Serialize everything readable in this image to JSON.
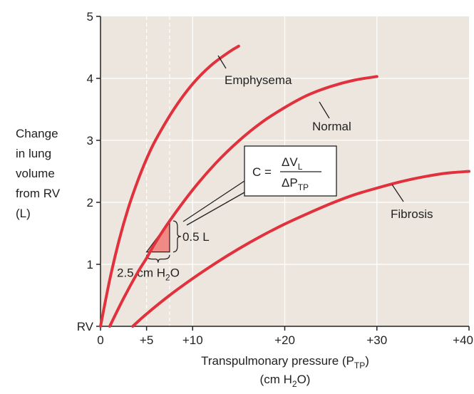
{
  "colors": {
    "plot_bg": "#ede6df",
    "curve": "#e0313d",
    "triangle_fill": "#f08a84",
    "grid": "#ffffff",
    "axis": "#222222",
    "box_fill": "#ffffff"
  },
  "chart_data": {
    "type": "line",
    "xlabel": {
      "line1": "Transpulmonary pressure (P",
      "line1_sub": "TP",
      "line1_end": ")",
      "line2": "(cm H",
      "line2_sub": "2",
      "line2_end": "O)"
    },
    "ylabel": [
      "Change",
      "in lung",
      "volume",
      "from RV",
      "(L)"
    ],
    "xlim": [
      0,
      40
    ],
    "ylim": [
      0,
      5
    ],
    "x_ticks": [
      {
        "value": 0,
        "label": "0"
      },
      {
        "value": 5,
        "label": "+5"
      },
      {
        "value": 10,
        "label": "+10"
      },
      {
        "value": 20,
        "label": "+20"
      },
      {
        "value": 30,
        "label": "+30"
      },
      {
        "value": 40,
        "label": "+40"
      }
    ],
    "y_ticks": [
      {
        "value": 0,
        "label": "RV"
      },
      {
        "value": 1,
        "label": "1"
      },
      {
        "value": 2,
        "label": "2"
      },
      {
        "value": 3,
        "label": "3"
      },
      {
        "value": 4,
        "label": "4"
      },
      {
        "value": 5,
        "label": "5"
      }
    ],
    "grid_x": [
      10,
      20,
      30
    ],
    "grid_y": [
      1,
      2,
      3,
      4
    ],
    "dashed_x": [
      5,
      7.5
    ],
    "series": [
      {
        "name": "Emphysema",
        "x": [
          0,
          1,
          2,
          3,
          4,
          5,
          6,
          8,
          10,
          12,
          14,
          15
        ],
        "y": [
          0,
          0.75,
          1.38,
          1.9,
          2.33,
          2.7,
          3.01,
          3.51,
          3.91,
          4.21,
          4.43,
          4.52
        ]
      },
      {
        "name": "Normal",
        "x": [
          1,
          2.5,
          4,
          5,
          6,
          7.5,
          10,
          12.5,
          15,
          17.5,
          20,
          22.5,
          25,
          27.5,
          30
        ],
        "y": [
          0,
          0.45,
          0.86,
          1.1,
          1.36,
          1.7,
          2.2,
          2.63,
          2.99,
          3.29,
          3.53,
          3.73,
          3.87,
          3.97,
          4.03
        ]
      },
      {
        "name": "Fibrosis",
        "x": [
          3.5,
          5,
          7.5,
          10,
          12.5,
          15,
          17.5,
          20,
          22.5,
          25,
          27.5,
          30,
          32.5,
          35,
          37.5,
          40
        ],
        "y": [
          0,
          0.2,
          0.5,
          0.77,
          1.02,
          1.25,
          1.46,
          1.65,
          1.82,
          1.98,
          2.12,
          2.23,
          2.33,
          2.41,
          2.47,
          2.5
        ]
      }
    ],
    "compliance_triangle": {
      "x_start": 5,
      "x_end": 7.5,
      "y_start": 1.2,
      "y_end": 1.7,
      "dv_label": "0.5 L",
      "dp_label": "2.5 cm H",
      "dp_sub": "2",
      "dp_end": "O"
    },
    "formula": {
      "lhs": "C =",
      "num": "ΔV",
      "num_sub": "L",
      "den": "ΔP",
      "den_sub": "TP"
    }
  }
}
